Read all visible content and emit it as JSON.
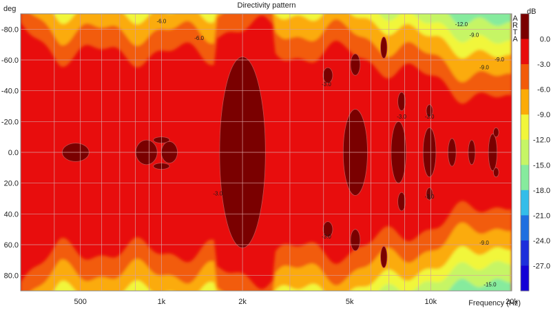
{
  "colors": {
    "levels": [
      "#7a0000",
      "#e80d0d",
      "#f25b09",
      "#fbab07",
      "#f1f63a",
      "#c6f565",
      "#86eb9d",
      "#33bde9",
      "#1f6fe0",
      "#1d2edb",
      "#1400d6"
    ],
    "grid": "#d8a0a0",
    "frame": "#8a8a8a"
  },
  "chart_data": {
    "type": "heatmap",
    "title": "Directivity pattern",
    "xlabel": "Frequency (Hz)",
    "ylabel": "deg",
    "x_scale": "log",
    "x_range": [
      300,
      20000
    ],
    "y_range": [
      -90,
      90
    ],
    "x_ticks": [
      {
        "value": 500,
        "label": "500"
      },
      {
        "value": 1000,
        "label": "1k"
      },
      {
        "value": 2000,
        "label": "2k"
      },
      {
        "value": 5000,
        "label": "5k"
      },
      {
        "value": 10000,
        "label": "10k"
      },
      {
        "value": 20000,
        "label": "20k"
      }
    ],
    "y_ticks": [
      {
        "value": -80,
        "label": "-80.0"
      },
      {
        "value": -60,
        "label": "-60.0"
      },
      {
        "value": -40,
        "label": "-40.0"
      },
      {
        "value": -20,
        "label": "-20.0"
      },
      {
        "value": 0,
        "label": "0.0"
      },
      {
        "value": 20,
        "label": "20.0"
      },
      {
        "value": 40,
        "label": "40.0"
      },
      {
        "value": 60,
        "label": "60.0"
      },
      {
        "value": 80,
        "label": "80.0"
      }
    ],
    "grid": true,
    "colorbar": {
      "unit": "dB",
      "labels": [
        "0.0",
        "-3.0",
        "-6.0",
        "-9.0",
        "-12.0",
        "-15.0",
        "-18.0",
        "-21.0",
        "-24.0",
        "-27.0"
      ]
    },
    "contour_labels": [
      {
        "text": "-6.0",
        "x": 1000,
        "y": -84
      },
      {
        "text": "-6.0",
        "x": 1380,
        "y": -73
      },
      {
        "text": "-12.0",
        "x": 13000,
        "y": -82
      },
      {
        "text": "-9.0",
        "x": 14500,
        "y": -75
      },
      {
        "text": "-9.0",
        "x": 18000,
        "y": -59
      },
      {
        "text": "-9.0",
        "x": 15800,
        "y": -54
      },
      {
        "text": "-9.0",
        "x": 15800,
        "y": 60
      },
      {
        "text": "-15.0",
        "x": 16600,
        "y": 87
      },
      {
        "text": "-3.0",
        "x": 4100,
        "y": -43
      },
      {
        "text": "-3.0",
        "x": 7800,
        "y": -22
      },
      {
        "text": "-3.0",
        "x": 9900,
        "y": -22
      },
      {
        "text": "-3.0",
        "x": 1620,
        "y": 28
      },
      {
        "text": "-3.0",
        "x": 4100,
        "y": 56
      },
      {
        "text": "-3.0",
        "x": 9900,
        "y": 30
      }
    ],
    "watermark": "ARTA"
  }
}
